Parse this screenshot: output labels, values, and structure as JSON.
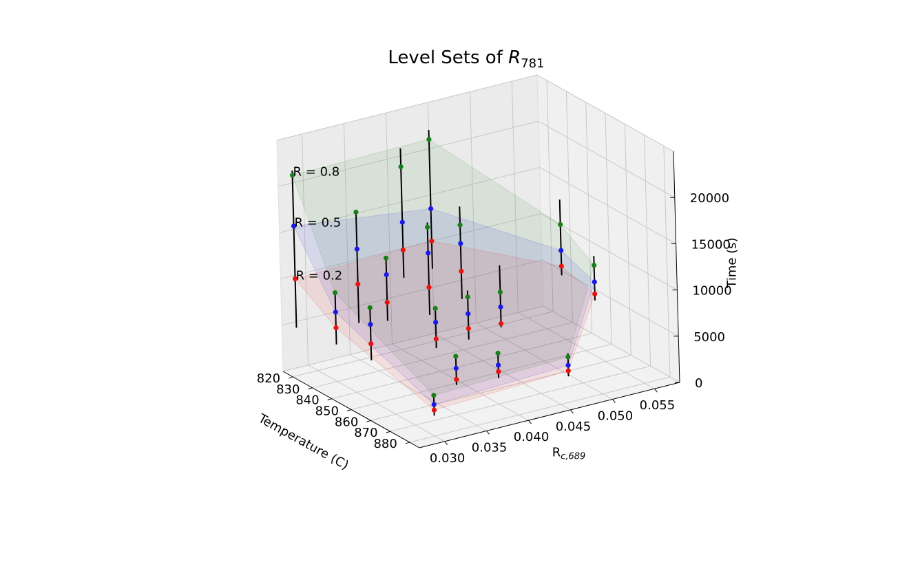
{
  "chart_data": {
    "type": "scatter",
    "title": {
      "prefix": "Level Sets of ",
      "symbol": "R",
      "subscript": "781"
    },
    "xlabel": "Temperature (C)",
    "ylabel": {
      "base": "R",
      "subscript": "c,689"
    },
    "zlabel": "Time (s)",
    "x_ticks": [
      "820",
      "830",
      "840",
      "850",
      "860",
      "870",
      "880"
    ],
    "y_ticks": [
      "0.030",
      "0.035",
      "0.040",
      "0.045",
      "0.050",
      "0.055"
    ],
    "z_ticks": [
      "0",
      "5000",
      "10000",
      "15000",
      "20000"
    ],
    "xlim": [
      815,
      885
    ],
    "ylim": [
      0.027,
      0.058
    ],
    "zlim": [
      0,
      25000
    ],
    "grid": true,
    "view": "3d",
    "annotations": [
      {
        "text": "R = 0.8",
        "level": "R08"
      },
      {
        "text": "R = 0.5",
        "level": "R05"
      },
      {
        "text": "R = 0.2",
        "level": "R02"
      }
    ],
    "level_colors": {
      "R02": "#e8140e",
      "R05": "#1a1ae8",
      "R08": "#198019"
    },
    "points": [
      {
        "x": 816,
        "y": 0.0285,
        "R02": 9800,
        "R05": 15500,
        "R08": 21000,
        "lo": 4500,
        "hi": 21500
      },
      {
        "x": 830,
        "y": 0.03,
        "R02": 5800,
        "R05": 7500,
        "R08": 9600,
        "lo": 4000,
        "hi": 9600
      },
      {
        "x": 848,
        "y": 0.03,
        "R02": 6200,
        "R05": 8300,
        "R08": 10100,
        "lo": 4400,
        "hi": 10300
      },
      {
        "x": 880,
        "y": 0.03,
        "R02": 2800,
        "R05": 3400,
        "R08": 4400,
        "lo": 2200,
        "hi": 4400
      },
      {
        "x": 820,
        "y": 0.035,
        "R02": 8200,
        "R05": 12000,
        "R08": 16000,
        "lo": 4000,
        "hi": 16000
      },
      {
        "x": 835,
        "y": 0.035,
        "R02": 8000,
        "R05": 11000,
        "R08": 12800,
        "lo": 6000,
        "hi": 12800
      },
      {
        "x": 860,
        "y": 0.035,
        "R02": 7000,
        "R05": 8800,
        "R08": 10300,
        "lo": 6000,
        "hi": 10300
      },
      {
        "x": 870,
        "y": 0.035,
        "R02": 3800,
        "R05": 5000,
        "R08": 6300,
        "lo": 3200,
        "hi": 6300
      },
      {
        "x": 822,
        "y": 0.04,
        "R02": 11000,
        "R05": 14000,
        "R08": 20000,
        "lo": 8000,
        "hi": 22000
      },
      {
        "x": 835,
        "y": 0.04,
        "R02": 8500,
        "R05": 12200,
        "R08": 15000,
        "lo": 5500,
        "hi": 15500
      },
      {
        "x": 855,
        "y": 0.04,
        "R02": 6400,
        "R05": 8000,
        "R08": 9800,
        "lo": 5200,
        "hi": 10500
      },
      {
        "x": 870,
        "y": 0.04,
        "R02": 3500,
        "R05": 4200,
        "R08": 5500,
        "lo": 2800,
        "hi": 5600
      },
      {
        "x": 815,
        "y": 0.045,
        "R02": 10000,
        "R05": 13500,
        "R08": 21000,
        "lo": 7000,
        "hi": 22000
      },
      {
        "x": 830,
        "y": 0.045,
        "R02": 8500,
        "R05": 11500,
        "R08": 13500,
        "lo": 5500,
        "hi": 15500
      },
      {
        "x": 850,
        "y": 0.045,
        "R02": 5200,
        "R05": 7000,
        "R08": 8600,
        "lo": 4800,
        "hi": 11500
      },
      {
        "x": 880,
        "y": 0.046,
        "R02": 3400,
        "R05": 4000,
        "R08": 4900,
        "lo": 2800,
        "hi": 5300
      },
      {
        "x": 825,
        "y": 0.058,
        "R02": 5500,
        "R05": 7200,
        "R08": 10000,
        "lo": 4500,
        "hi": 12700
      },
      {
        "x": 842,
        "y": 0.058,
        "R02": 4500,
        "R05": 5800,
        "R08": 7600,
        "lo": 3800,
        "hi": 8600
      }
    ]
  }
}
